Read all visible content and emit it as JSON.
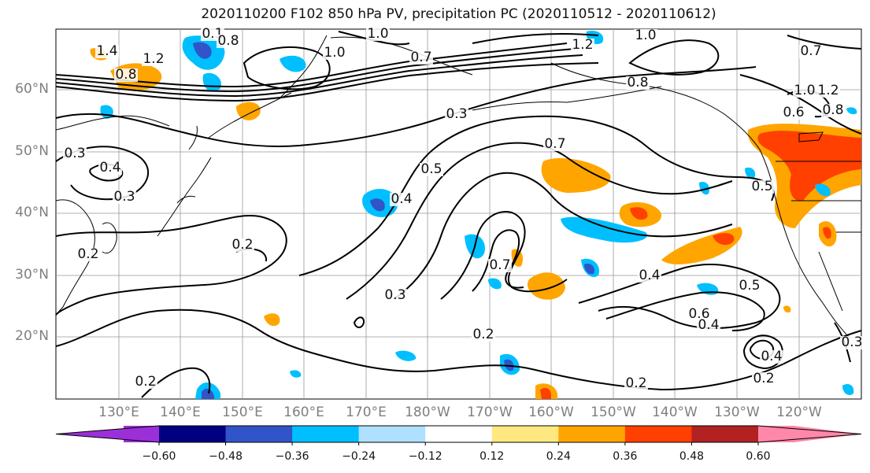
{
  "title": "2020110200 F102 850 hPa PV, precipitation PC (2020110512 - 2020110612)",
  "lat_labels": [
    "60°N",
    "50°N",
    "40°N",
    "30°N",
    "20°N"
  ],
  "lon_labels": [
    "130°E",
    "140°E",
    "150°E",
    "160°E",
    "170°E",
    "180°W",
    "170°W",
    "160°W",
    "150°W",
    "140°W",
    "130°W",
    "120°W"
  ],
  "colorbar": {
    "tick_labels": [
      "−0.60",
      "−0.48",
      "−0.36",
      "−0.24",
      "−0.12",
      "0.12",
      "0.24",
      "0.36",
      "0.48",
      "0.60"
    ],
    "colors": [
      "#9b30d8",
      "#000080",
      "#3154c8",
      "#00bfff",
      "#b0e0ff",
      "#ffffff",
      "#ffe880",
      "#ffa500",
      "#ff4000",
      "#b22222",
      "#ff88aa"
    ]
  },
  "contour_labels": [
    "1.4",
    "1.2",
    "0.8",
    "0.1",
    "0.8",
    "1.0",
    "0.7",
    "1.0",
    "1.2",
    "1.0",
    "0.7",
    "0.8",
    "1.0",
    "1.2",
    "0.3",
    "0.3",
    "0.4",
    "0.3",
    "0.7",
    "0.5",
    "0.4",
    "0.5",
    "0.2",
    "0.7",
    "0.4",
    "0.5",
    "0.3",
    "0.6",
    "0.4",
    "0.2",
    "0.2",
    "0.4",
    "0.2",
    "0.2",
    "0.3",
    "0.2",
    "0.6",
    "0.8"
  ]
}
